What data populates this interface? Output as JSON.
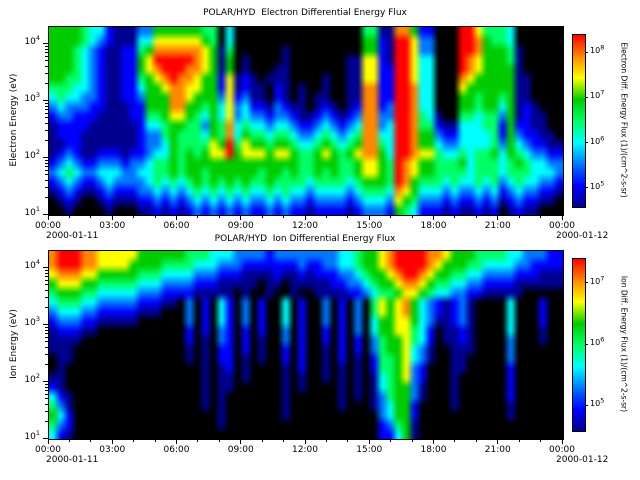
{
  "palette": [
    "#000000",
    "#000090",
    "#0000ff",
    "#0077ff",
    "#00ffff",
    "#00ff66",
    "#00cc00",
    "#ffff00",
    "#ff8800",
    "#ff0000"
  ],
  "chart_data": [
    {
      "type": "heatmap",
      "title": "POLAR/HYD  Electron Differential Energy Flux",
      "ylabel": "Electron Energy (eV)",
      "cbar_label": "Electron Diff. Energy Flux (1)/(cm^2-s-sr)",
      "x_ticks": [
        "00:00",
        "03:00",
        "06:00",
        "09:00",
        "12:00",
        "15:00",
        "18:00",
        "21:00",
        "00:00"
      ],
      "date_left": "2000-01-11",
      "date_right": "2000-01-12",
      "y_tick_exps": [
        4,
        3,
        2,
        1
      ],
      "y_range_exp": [
        1,
        4.3
      ],
      "cbar_tick_exps": [
        8,
        7,
        6,
        5
      ],
      "cbar_range_exp": [
        4.6,
        8.4
      ],
      "grid_cols": 64,
      "grid": [
        "6666544211133666666550400000000000000005511886220009975554000000",
        "6666543211144777777650400000000000000006621997330009986554000000",
        "6665432112256888888761500000010000000006621997330009986665100000",
        "6665432112267999998761601000010000000117721997440009876665100000",
        "6665432112267899988761601000110000000117722997440009876666100000",
        "6655432112256789887662712101110000100117722997440008766666110000",
        "5554432112246678877662712110210100100118822998440007666666110000",
        "4544332112236668876663723110210101100118822998440006656656110000",
        "3433322111226668866564734221321101210128823998440006656646121000",
        "2332221111225567765464734332332112321238833998541005545536121100",
        "1222211111124456655365845443443223432348834998552114445526221100",
        "1222111111123356555465846554554334543458844998663224444526322110",
        "1122111111123346555576957665665445654568854998664334444536432211",
        "1232112221223446565677967776776556765678864998775445455646543322",
        "2343223332334556566666666666666556665567765987665556455545654433",
        "3454334443344556566566666656656556565567765987665555455545554443",
        "2343223433334545456565656556555545555456665986555454454534544332",
        "1232112322233434345454545445454434444345554876444343343423433221",
        "0121001211122323234343434334343323333234443765333232232312322110",
        "0010000100011212123232323223232212222123332654222121121201211000"
      ]
    },
    {
      "type": "heatmap",
      "title": "POLAR/HYD  Ion Differential Energy Flux",
      "ylabel": "Ion Energy (eV)",
      "cbar_label": "Ion Diff. Energy Flux (1)/(cm^2-s-sr)",
      "x_ticks": [
        "00:00",
        "03:00",
        "06:00",
        "09:00",
        "12:00",
        "15:00",
        "18:00",
        "21:00",
        "00:00"
      ],
      "date_left": "2000-01-11",
      "date_right": "2000-01-12",
      "y_tick_exps": [
        4,
        3,
        2,
        1
      ],
      "y_range_exp": [
        1,
        4.3
      ],
      "cbar_tick_exps": [
        7,
        6,
        5
      ],
      "cbar_range_exp": [
        4.6,
        7.4
      ],
      "grid_cols": 64,
      "grid": [
        "8999887777766666655544433332333333334456678999988766655554433322",
        "8999887777666655554443332222222322334456678999987666554444332222",
        "7888776666655544443332221111211212223345667899876655443333222111",
        "6777665555544433332221111101101111122334566788765544332222111111",
        "5666554444433322221111101001001001111223455677654433221111100000",
        "4555443333322211030204203020040200302030576786432123100004000200",
        "3444332222211100030204203020040200302030576786432123100004000200",
        "2333221111100000030204203020040200302030466776431123100004000200",
        "1222110000000000020203202020030200202030466775420112100004000100",
        "1111000000000000020103202010030200202020356675420112100003000100",
        "1110000000000000010102202010020200102020356674310011100003000000",
        "0110000000000000010102201010020200102010255674310011000003000000",
        "0100000000000000000101201000010200101010255673200011000002000000",
        "1100000000000000000101101000010100101010145673200010000002000000",
        "2100000000000000000101100000010100001010145663100010000002000000",
        "4210000000000000000101000000010000001010135663100010000002000000",
        "5310000000000000000101000000010000001000134662000010000001000000",
        "6420000000000000000001000000010000000000034662000000000001000000",
        "5320000000000000000001000000000000000000023561000000000000000000",
        "4210000000000000000000000000000000000000022461000000000000000000"
      ]
    }
  ]
}
